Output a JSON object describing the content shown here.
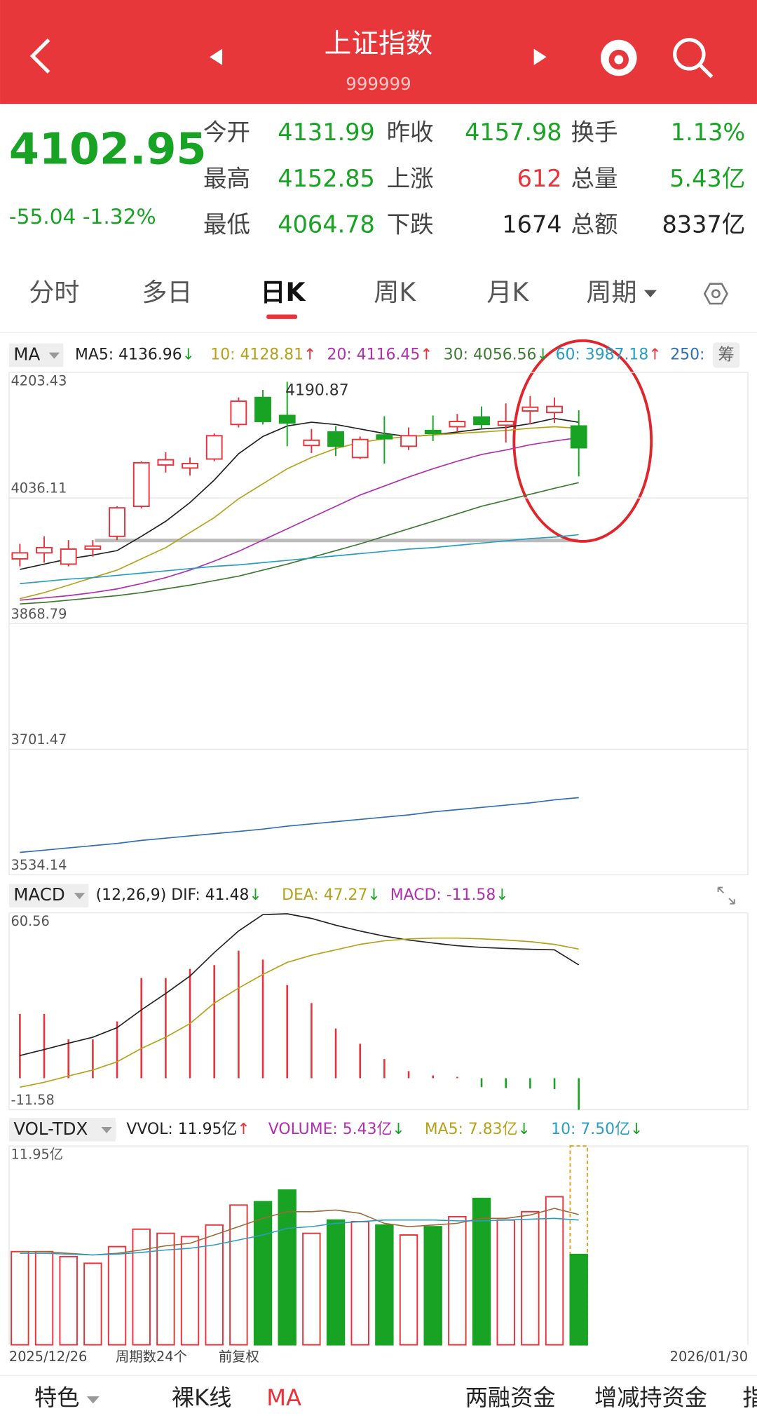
{
  "header": {
    "title": "上证指数",
    "code": "999999"
  },
  "quote": {
    "price": "4102.95",
    "change": "-55.04 -1.32%",
    "fields": [
      {
        "label": "今开",
        "value": "4131.99"
      },
      {
        "label": "昨收",
        "value": "4157.98"
      },
      {
        "label": "换手",
        "value": "1.13%"
      },
      {
        "label": "最高",
        "value": "4152.85"
      },
      {
        "label": "上涨",
        "value": "612"
      },
      {
        "label": "总量",
        "value": "5.43亿"
      },
      {
        "label": "最低",
        "value": "4064.78"
      },
      {
        "label": "下跌",
        "value": "1674"
      },
      {
        "label": "总额",
        "value": "8337亿"
      }
    ]
  },
  "tabs": [
    "分时",
    "多日",
    "日K",
    "周K",
    "月K",
    "周期"
  ],
  "price_chart": {
    "type": "candlestick",
    "indicator": "MA",
    "side_button": "筹",
    "legend": [
      {
        "text": "MA5: 4136.96",
        "arrow": "↓",
        "color": "#222222"
      },
      {
        "text": "10: 4128.81",
        "arrow": "↑",
        "color": "#b5a21c"
      },
      {
        "text": "20: 4116.45",
        "arrow": "↑",
        "color": "#b030b0"
      },
      {
        "text": "30: 4056.56",
        "arrow": "↓",
        "color": "#3e7a34"
      },
      {
        "text": "60: 3987.18",
        "arrow": "↑",
        "color": "#2a9ec0"
      },
      {
        "text": "250:",
        "color": "#2f6fb0"
      }
    ],
    "ylim": [
      3534.14,
      4203.43
    ],
    "yticks": [
      4203.43,
      4036.11,
      3868.79,
      3701.47,
      3534.14
    ],
    "open": [
      3955,
      3963,
      3948,
      3968,
      3985,
      4025,
      4080,
      4076,
      4088,
      4134,
      4170,
      4146,
      4106,
      4124,
      4090,
      4120,
      4105,
      4126,
      4131,
      4144,
      4133,
      4152,
      4150,
      4131.99
    ],
    "high": [
      3975,
      3985,
      3980,
      3980,
      4025,
      4085,
      4097,
      4090,
      4122,
      4170,
      4180,
      4190.87,
      4128,
      4132,
      4118,
      4145,
      4130,
      4146,
      4148,
      4158,
      4162,
      4172,
      4170,
      4152.85
    ],
    "low": [
      3945,
      3950,
      3945,
      3958,
      3980,
      4022,
      4070,
      4066,
      4085,
      4130,
      4134,
      4105,
      4096,
      4092,
      4088,
      4082,
      4100,
      4112,
      4124,
      4128,
      4110,
      4134,
      4136,
      4064.78
    ],
    "close": [
      3963,
      3970,
      3968,
      3972,
      4023,
      4083,
      4087,
      4082,
      4119,
      4165,
      4138,
      4136,
      4113,
      4105,
      4114,
      4115,
      4119,
      4122,
      4138,
      4134,
      4138,
      4157,
      4157.98,
      4102.95
    ],
    "up_color": "#e8323c",
    "down_color": "#18a324",
    "ma": [
      {
        "color": "#222222",
        "values": [
          3941,
          3948,
          3955,
          3960,
          3966,
          3985,
          4005,
          4030,
          4060,
          4095,
          4118,
          4132,
          4137,
          4134,
          4128,
          4122,
          4118,
          4120,
          4124,
          4128,
          4130,
          4135,
          4142,
          4136.96
        ]
      },
      {
        "color": "#b5a21c",
        "values": [
          3902,
          3910,
          3920,
          3930,
          3940,
          3955,
          3970,
          3990,
          4010,
          4035,
          4055,
          4075,
          4090,
          4102,
          4110,
          4115,
          4118,
          4120,
          4122,
          4124,
          4126,
          4129,
          4131,
          4128.81
        ]
      },
      {
        "color": "#b030b0",
        "values": [
          3900,
          3903,
          3906,
          3910,
          3915,
          3922,
          3930,
          3940,
          3952,
          3965,
          3980,
          3995,
          4010,
          4025,
          4040,
          4052,
          4064,
          4075,
          4085,
          4094,
          4100,
          4107,
          4112,
          4116.45
        ]
      },
      {
        "color": "#3e7a34",
        "values": [
          3895,
          3897,
          3900,
          3903,
          3906,
          3910,
          3915,
          3920,
          3926,
          3932,
          3940,
          3948,
          3957,
          3966,
          3975,
          3985,
          3995,
          4005,
          4015,
          4025,
          4033,
          4041,
          4049,
          4056.56
        ]
      },
      {
        "color": "#2a9ec0",
        "values": [
          3922,
          3925,
          3928,
          3930,
          3933,
          3936,
          3939,
          3942,
          3945,
          3947,
          3950,
          3953,
          3956,
          3959,
          3962,
          3965,
          3968,
          3970,
          3973,
          3976,
          3979,
          3982,
          3984,
          3987.18
        ]
      },
      {
        "color": "#2f6fb0",
        "values": [
          3564,
          3567,
          3570,
          3573,
          3576,
          3580,
          3583,
          3586,
          3589,
          3592,
          3595,
          3599,
          3602,
          3605,
          3608,
          3611,
          3614,
          3618,
          3621,
          3624,
          3627,
          3630,
          3634,
          3637
        ]
      }
    ]
  },
  "macd_chart": {
    "type": "macd",
    "indicator": "MACD",
    "legend": [
      {
        "text": "(12,26,9) DIF: 41.48",
        "arrow": "↓",
        "color": "#222222"
      },
      {
        "text": "DEA: 47.27",
        "arrow": "↓",
        "color": "#b5a21c"
      },
      {
        "text": "MACD: -11.58",
        "arrow": "↓",
        "color": "#b030b0"
      }
    ],
    "ylim": [
      -11.58,
      60.56
    ],
    "yticks": [
      60.56,
      -11.58
    ],
    "histogram": [
      23.5,
      23.5,
      14.2,
      14.2,
      20.8,
      36.7,
      36.7,
      40.0,
      41.4,
      46.7,
      43.4,
      34.1,
      27.5,
      18.2,
      12.6,
      7.0,
      2.6,
      1.0,
      0.5,
      -3.3,
      -3.6,
      -3.8,
      -4.0,
      -11.58
    ],
    "dif": {
      "color": "#222222",
      "values": [
        8.3,
        10.5,
        12.8,
        15.0,
        18.5,
        25,
        31,
        37.4,
        46,
        53.9,
        59.9,
        60.2,
        58.5,
        56,
        53.9,
        52,
        50.6,
        49.5,
        48.5,
        47.9,
        47.5,
        47.2,
        47,
        41.48
      ]
    },
    "dea": {
      "color": "#b5a21c",
      "values": [
        -3.3,
        -1.5,
        0.8,
        3,
        6,
        10.9,
        15,
        20,
        27.5,
        33,
        38,
        42.4,
        45,
        47,
        49,
        50.3,
        51,
        51.3,
        51.3,
        51,
        50.6,
        50,
        49,
        47.27
      ]
    }
  },
  "volume_chart": {
    "type": "bar",
    "indicator": "VOL-TDX",
    "legend": [
      {
        "text": "VVOL: 11.95亿",
        "arrow": "↑",
        "color": "#222222"
      },
      {
        "text": "VOLUME: 5.43亿",
        "arrow": "↓",
        "color": "#b030b0"
      },
      {
        "text": "MA5: 7.83亿",
        "arrow": "↓",
        "color": "#b5a21c"
      },
      {
        "text": "10: 7.50亿",
        "arrow": "↓",
        "color": "#2a9ec0"
      }
    ],
    "ylim": [
      0,
      11.95
    ],
    "yticks": [
      {
        "value": 11.95,
        "label": "11.95亿"
      }
    ],
    "values": [
      5.6,
      5.6,
      5.3,
      4.9,
      5.9,
      6.95,
      6.7,
      6.5,
      7.2,
      8.4,
      8.6,
      9.3,
      6.7,
      7.5,
      7.4,
      7.2,
      6.6,
      7.1,
      7.7,
      8.8,
      7.5,
      8.0,
      8.9,
      5.43
    ],
    "ma": [
      {
        "color": "#9a6a3a",
        "values": [
          5.6,
          5.6,
          5.5,
          5.4,
          5.5,
          5.7,
          5.95,
          6.1,
          6.6,
          7.1,
          7.6,
          8.0,
          8.0,
          8.1,
          7.9,
          7.3,
          7.1,
          7.2,
          7.3,
          7.6,
          7.6,
          7.8,
          8.2,
          7.83
        ]
      },
      {
        "color": "#2a9ec0",
        "values": [
          5.5,
          5.5,
          5.45,
          5.4,
          5.45,
          5.55,
          5.7,
          5.8,
          6.0,
          6.3,
          6.6,
          7.0,
          7.1,
          7.3,
          7.4,
          7.5,
          7.5,
          7.5,
          7.45,
          7.45,
          7.5,
          7.55,
          7.6,
          7.5
        ]
      }
    ]
  },
  "footer": {
    "start": "2025/12/26",
    "count": "周期数24个",
    "adjust": "前复权",
    "end": "2026/01/30"
  },
  "bottom_nav": [
    "特色",
    "裸K线",
    "MA",
    "两融资金",
    "增减持资金",
    "指"
  ]
}
